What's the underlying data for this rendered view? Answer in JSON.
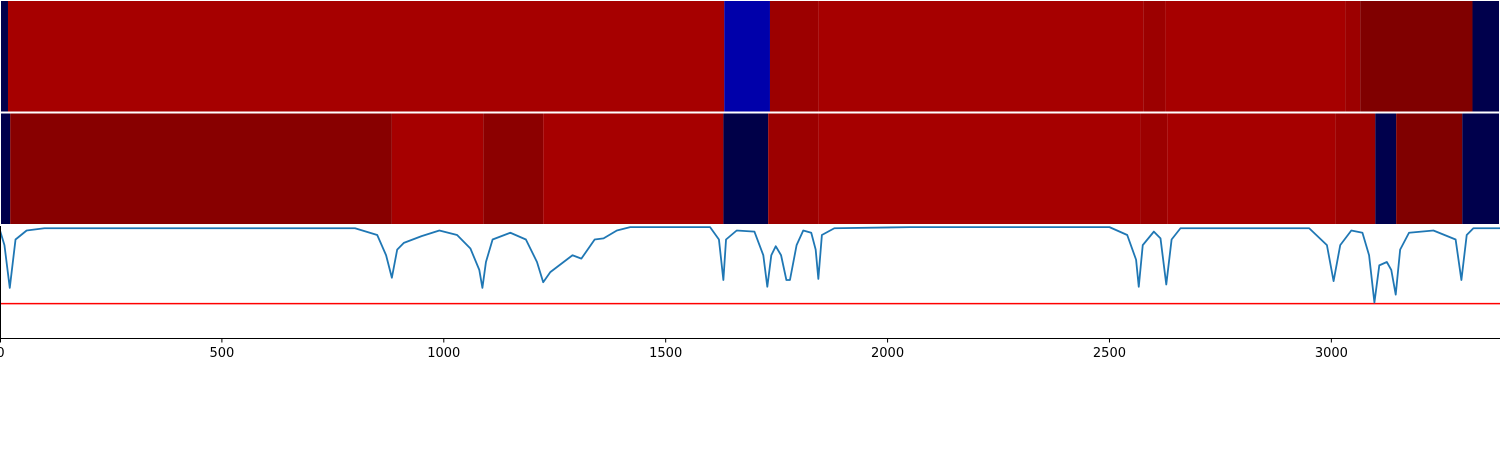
{
  "chart_data": {
    "type": "line",
    "xlim": [
      0,
      3380
    ],
    "ylim": [
      0,
      1
    ],
    "xticks": [
      0,
      500,
      1000,
      1500,
      2000,
      2500,
      3000
    ],
    "strips": [
      {
        "segments": [
          {
            "start": 0,
            "end": 18,
            "color": "#00004c"
          },
          {
            "start": 18,
            "end": 1632,
            "color": "#a60000"
          },
          {
            "start": 1632,
            "end": 1735,
            "color": "#0000aa"
          },
          {
            "start": 1735,
            "end": 1844,
            "color": "#9c0000"
          },
          {
            "start": 1844,
            "end": 2576,
            "color": "#a60000"
          },
          {
            "start": 2576,
            "end": 2626,
            "color": "#9c0000"
          },
          {
            "start": 2626,
            "end": 3031,
            "color": "#a60000"
          },
          {
            "start": 3031,
            "end": 3065,
            "color": "#9c0000"
          },
          {
            "start": 3065,
            "end": 3318,
            "color": "#800000"
          },
          {
            "start": 3318,
            "end": 3380,
            "color": "#00004c"
          }
        ]
      },
      {
        "segments": [
          {
            "start": 0,
            "end": 23,
            "color": "#00004c"
          },
          {
            "start": 23,
            "end": 883,
            "color": "#880000"
          },
          {
            "start": 883,
            "end": 1089,
            "color": "#a60000"
          },
          {
            "start": 1089,
            "end": 1224,
            "color": "#8c0000"
          },
          {
            "start": 1224,
            "end": 1630,
            "color": "#a60000"
          },
          {
            "start": 1630,
            "end": 1731,
            "color": "#000048"
          },
          {
            "start": 1731,
            "end": 1844,
            "color": "#9c0000"
          },
          {
            "start": 1844,
            "end": 2569,
            "color": "#a60000"
          },
          {
            "start": 2569,
            "end": 2630,
            "color": "#9c0000"
          },
          {
            "start": 2630,
            "end": 3009,
            "color": "#a60000"
          },
          {
            "start": 3009,
            "end": 3099,
            "color": "#9c0000"
          },
          {
            "start": 3099,
            "end": 3146,
            "color": "#00004c"
          },
          {
            "start": 3146,
            "end": 3295,
            "color": "#800000"
          },
          {
            "start": 3295,
            "end": 3380,
            "color": "#00004c"
          }
        ]
      }
    ],
    "series": [
      {
        "color": "#1f77b4",
        "x": [
          0,
          10,
          22,
          35,
          60,
          100,
          800,
          850,
          870,
          883,
          895,
          910,
          950,
          990,
          1030,
          1060,
          1080,
          1087,
          1095,
          1110,
          1150,
          1185,
          1210,
          1224,
          1240,
          1270,
          1290,
          1310,
          1340,
          1360,
          1390,
          1420,
          1600,
          1620,
          1630,
          1636,
          1660,
          1700,
          1720,
          1729,
          1738,
          1748,
          1760,
          1772,
          1780,
          1795,
          1810,
          1828,
          1838,
          1844,
          1852,
          1880,
          2050,
          2500,
          2540,
          2560,
          2566,
          2575,
          2600,
          2615,
          2628,
          2640,
          2660,
          2950,
          2990,
          3005,
          3020,
          3045,
          3070,
          3085,
          3097,
          3108,
          3125,
          3135,
          3145,
          3155,
          3175,
          3230,
          3280,
          3293,
          3305,
          3320,
          3380
        ],
        "values": [
          0.96,
          0.83,
          0.45,
          0.88,
          0.96,
          0.98,
          0.98,
          0.92,
          0.74,
          0.54,
          0.79,
          0.85,
          0.91,
          0.96,
          0.92,
          0.8,
          0.61,
          0.45,
          0.68,
          0.88,
          0.94,
          0.88,
          0.68,
          0.5,
          0.59,
          0.68,
          0.74,
          0.71,
          0.88,
          0.89,
          0.96,
          0.99,
          0.99,
          0.88,
          0.52,
          0.88,
          0.96,
          0.95,
          0.74,
          0.46,
          0.74,
          0.82,
          0.74,
          0.52,
          0.52,
          0.83,
          0.96,
          0.94,
          0.79,
          0.53,
          0.92,
          0.98,
          0.99,
          0.99,
          0.92,
          0.7,
          0.46,
          0.83,
          0.95,
          0.89,
          0.48,
          0.88,
          0.98,
          0.98,
          0.83,
          0.51,
          0.83,
          0.96,
          0.94,
          0.74,
          0.32,
          0.65,
          0.68,
          0.61,
          0.39,
          0.79,
          0.94,
          0.96,
          0.88,
          0.52,
          0.92,
          0.98,
          0.98
        ]
      }
    ],
    "threshold": {
      "value": 0.31,
      "color": "#ff0000"
    }
  }
}
